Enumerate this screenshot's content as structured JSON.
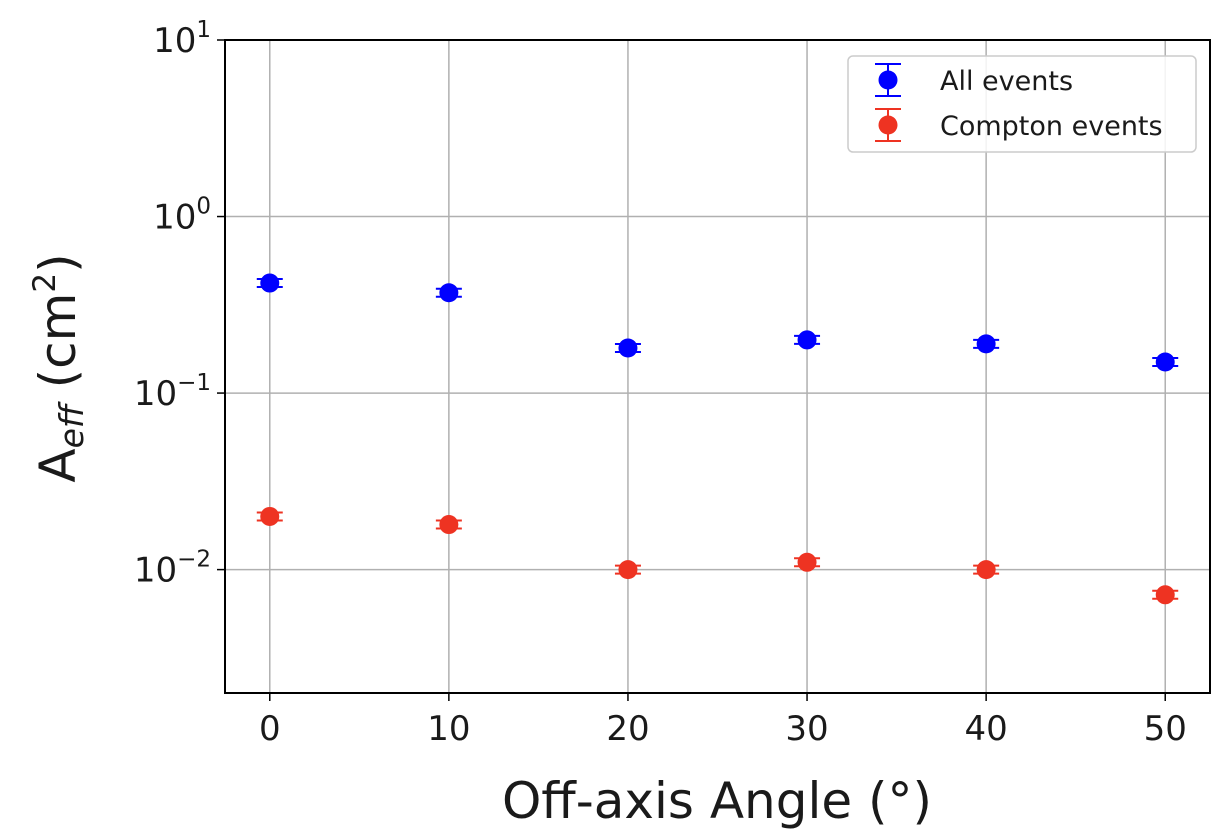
{
  "chart_data": {
    "type": "scatter",
    "xlabel": "Off-axis Angle (°)",
    "ylabel": "A_eff (cm²)",
    "x_ticks": [
      0,
      10,
      20,
      30,
      40,
      50
    ],
    "y_ticks": [
      {
        "value": 10,
        "base": "10",
        "exp": "1"
      },
      {
        "value": 1,
        "base": "10",
        "exp": "0"
      },
      {
        "value": 0.1,
        "base": "10",
        "exp": "−1"
      },
      {
        "value": 0.01,
        "base": "10",
        "exp": "−2"
      }
    ],
    "xlim": [
      -2.5,
      52.5
    ],
    "ylim": [
      0.002,
      10
    ],
    "y_scale": "log",
    "grid": true,
    "legend_position": "top-right",
    "series": [
      {
        "name": "All events",
        "color": "#0000ff",
        "points": [
          {
            "x": 0,
            "y": 0.42
          },
          {
            "x": 10,
            "y": 0.37
          },
          {
            "x": 20,
            "y": 0.18
          },
          {
            "x": 30,
            "y": 0.2
          },
          {
            "x": 40,
            "y": 0.19
          },
          {
            "x": 50,
            "y": 0.15
          }
        ]
      },
      {
        "name": "Compton events",
        "color": "#ee3322",
        "points": [
          {
            "x": 0,
            "y": 0.02
          },
          {
            "x": 10,
            "y": 0.018
          },
          {
            "x": 20,
            "y": 0.01
          },
          {
            "x": 30,
            "y": 0.011
          },
          {
            "x": 40,
            "y": 0.01
          },
          {
            "x": 50,
            "y": 0.0072
          }
        ]
      }
    ]
  }
}
